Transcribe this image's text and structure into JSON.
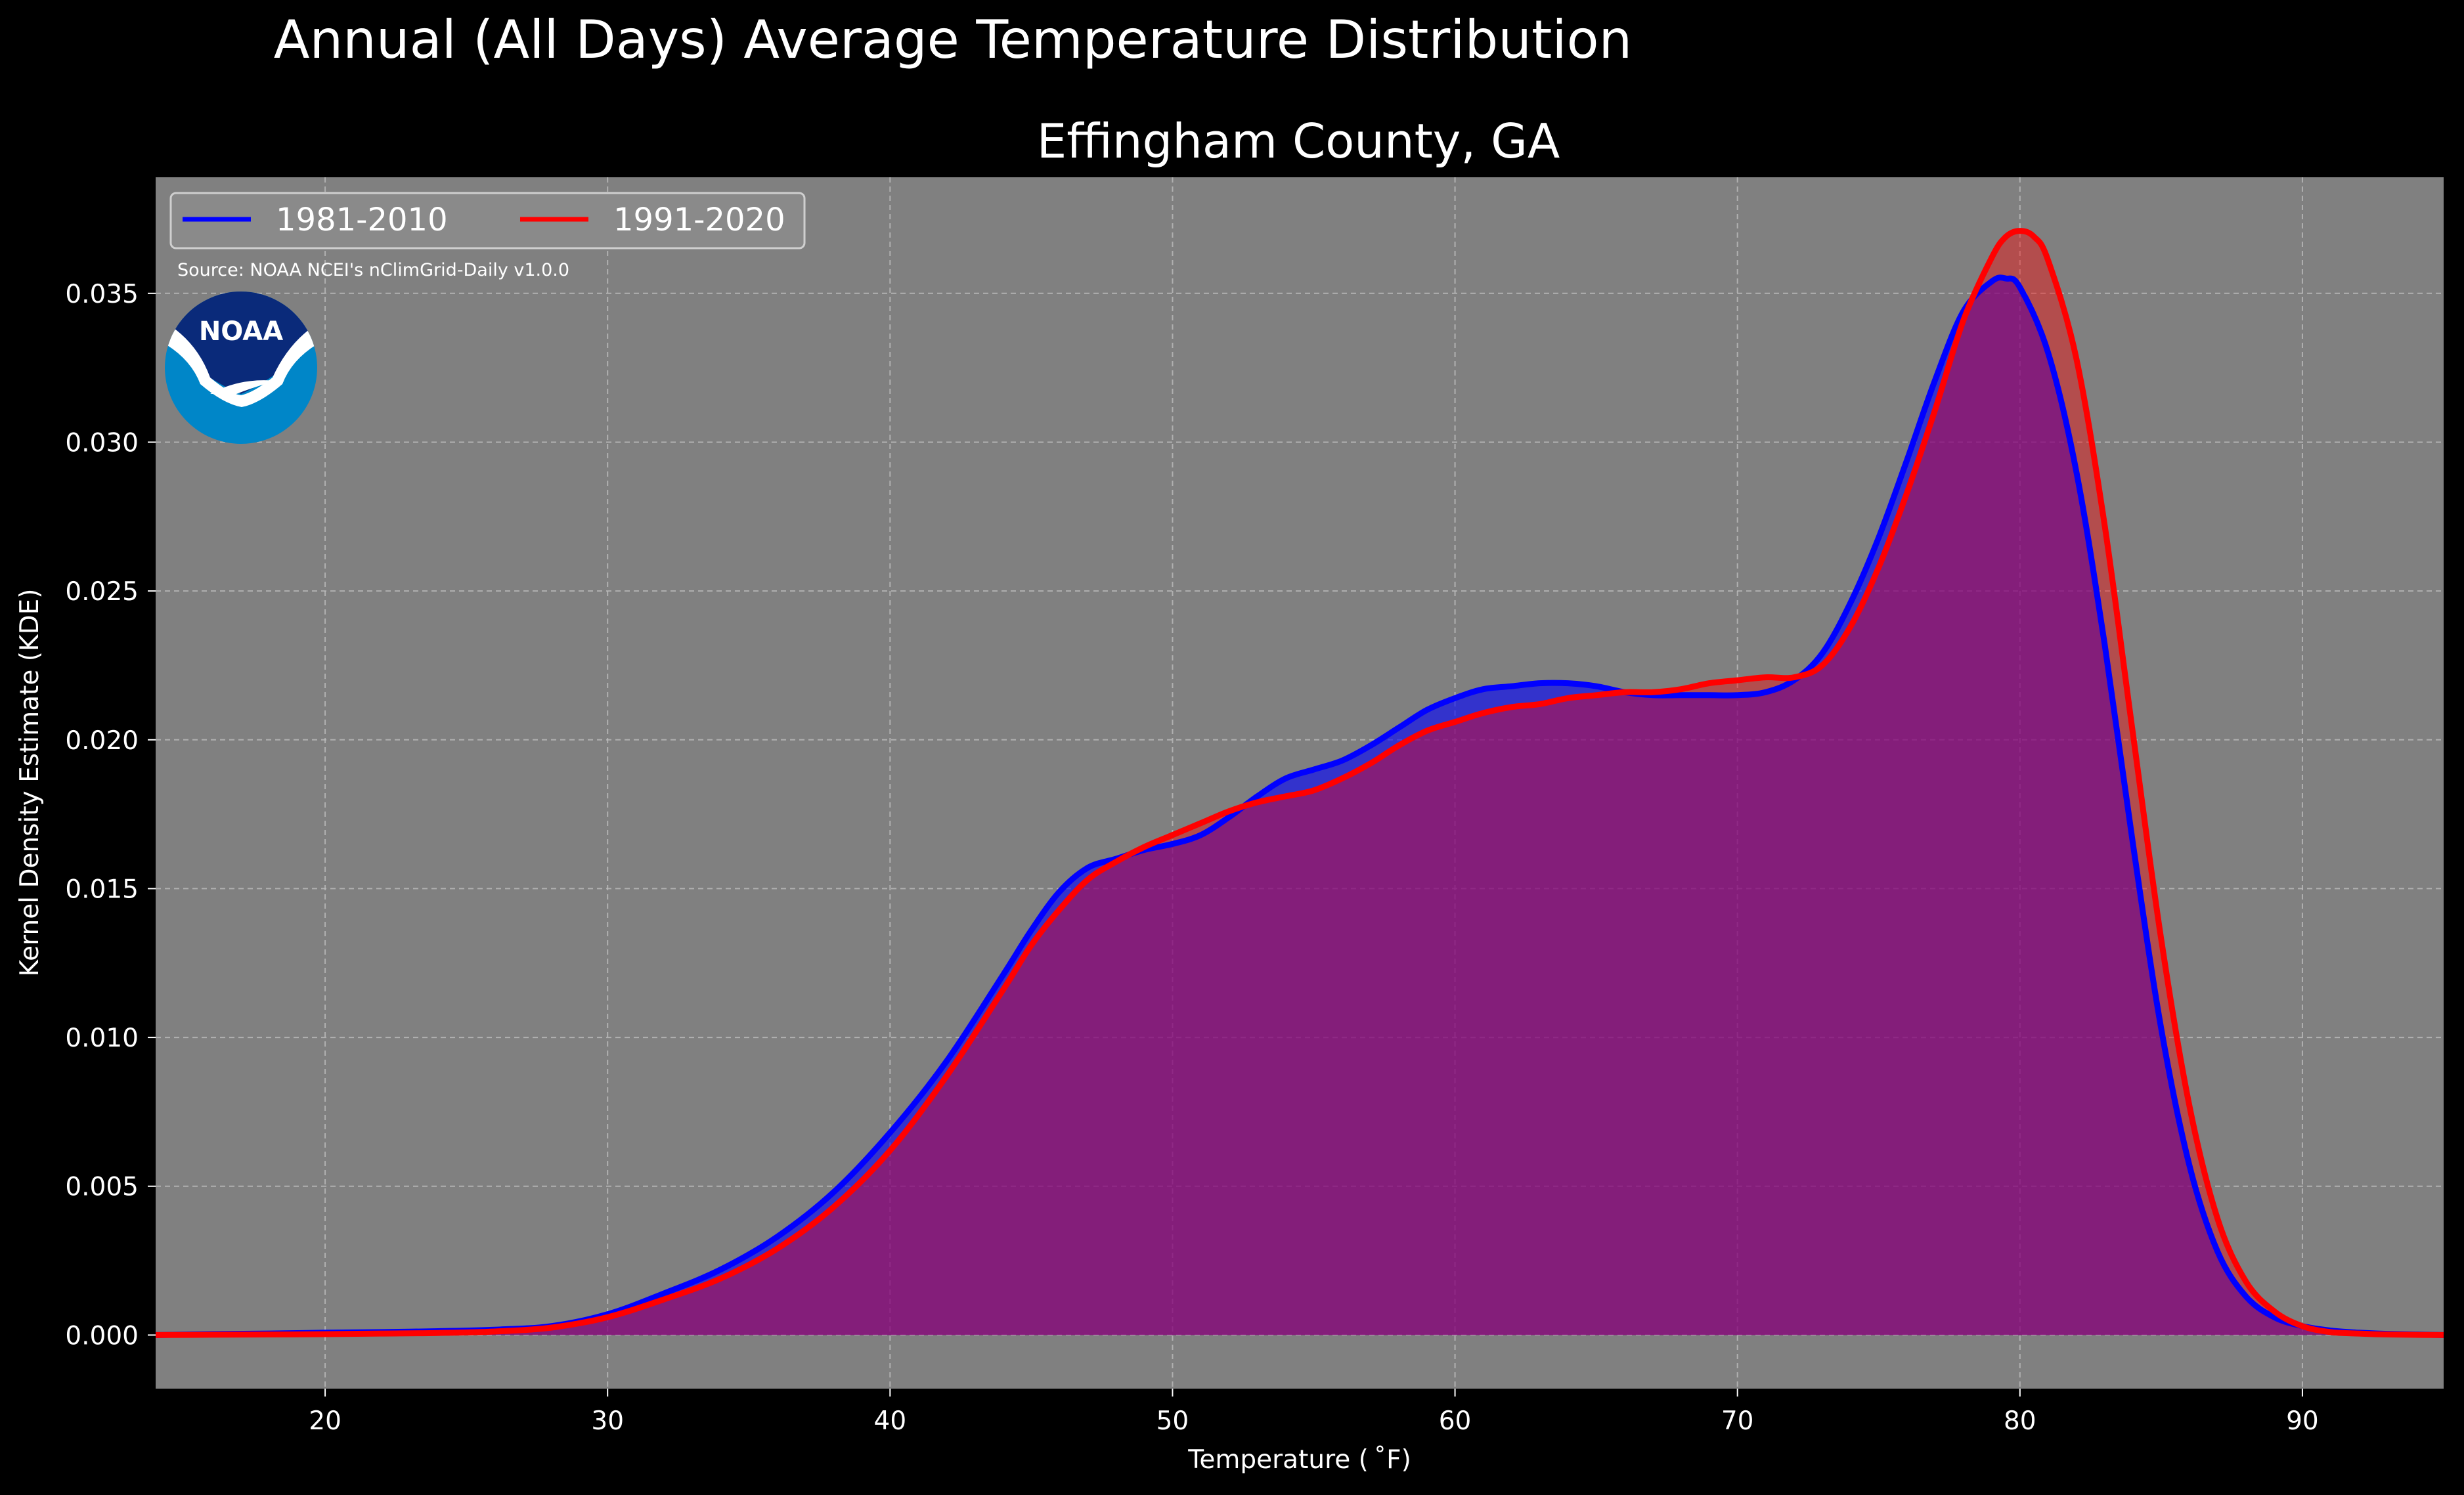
{
  "chart_data": {
    "type": "area",
    "suptitle": "Annual (All Days) Average Temperature Distribution",
    "title": "Effingham County, GA",
    "xlabel": "Temperature ($^\\circ$F)",
    "xlabel_display": "Temperature ( ˚F)",
    "ylabel": "Kernel Density Estimate (KDE)",
    "xlim": [
      14,
      95
    ],
    "ylim": [
      -0.0018,
      0.0389
    ],
    "xticks": [
      20,
      30,
      40,
      50,
      60,
      70,
      80,
      90
    ],
    "xtick_labels": [
      "20",
      "30",
      "40",
      "50",
      "60",
      "70",
      "80",
      "90"
    ],
    "yticks": [
      0.0,
      0.005,
      0.01,
      0.015,
      0.02,
      0.025,
      0.03,
      0.035
    ],
    "ytick_labels": [
      "0.000",
      "0.005",
      "0.010",
      "0.015",
      "0.020",
      "0.025",
      "0.030",
      "0.035"
    ],
    "grid": true,
    "legend_position": "top-left",
    "source_note": "Source: NOAA NCEI's nClimGrid-Daily v1.0.0",
    "logo_text": "NOAA",
    "series": [
      {
        "name": "1981-2010",
        "color": "#0000ff",
        "fill": "rgba(0,0,255,0.6)",
        "x": [
          14,
          16,
          18,
          20,
          22,
          24,
          26,
          28,
          30,
          32,
          34,
          36,
          38,
          40,
          42,
          44,
          45,
          46,
          47,
          48,
          49,
          50,
          51,
          52,
          53,
          54,
          55,
          56,
          57,
          58,
          59,
          60,
          61,
          62,
          63,
          64,
          65,
          66,
          67,
          68,
          69,
          70,
          71,
          72,
          73,
          74,
          75,
          76,
          77,
          78,
          79,
          79.5,
          80,
          81,
          82,
          83,
          84,
          85,
          86,
          87,
          88,
          89,
          90,
          91,
          92,
          93,
          95
        ],
        "y": [
          0.0,
          3e-05,
          5e-05,
          8e-05,
          0.0001,
          0.00013,
          0.00018,
          0.0003,
          0.0007,
          0.0014,
          0.0022,
          0.0033,
          0.0048,
          0.0068,
          0.0092,
          0.0121,
          0.0136,
          0.0149,
          0.0157,
          0.016,
          0.0163,
          0.0165,
          0.0168,
          0.0174,
          0.0181,
          0.0187,
          0.019,
          0.0193,
          0.0198,
          0.0204,
          0.021,
          0.0214,
          0.0217,
          0.0218,
          0.0219,
          0.0219,
          0.0218,
          0.0216,
          0.0215,
          0.0215,
          0.0215,
          0.0215,
          0.0216,
          0.022,
          0.0229,
          0.0246,
          0.0268,
          0.0294,
          0.0321,
          0.0344,
          0.0354,
          0.0355,
          0.0352,
          0.033,
          0.029,
          0.0232,
          0.0165,
          0.0103,
          0.0057,
          0.0028,
          0.0013,
          0.0006,
          0.0003,
          0.00015,
          8e-05,
          4e-05,
          0.0
        ]
      },
      {
        "name": "1991-2020",
        "color": "#ff0000",
        "fill": "rgba(255,0,0,0.4)",
        "x": [
          14,
          16,
          18,
          20,
          22,
          24,
          26,
          28,
          30,
          32,
          34,
          36,
          38,
          40,
          42,
          44,
          45,
          46,
          47,
          48,
          49,
          50,
          51,
          52,
          53,
          54,
          55,
          56,
          57,
          58,
          59,
          60,
          61,
          62,
          63,
          64,
          65,
          66,
          67,
          68,
          69,
          70,
          71,
          72,
          73,
          74,
          75,
          76,
          77,
          78,
          79,
          79.5,
          80,
          80.5,
          81,
          82,
          83,
          84,
          85,
          86,
          87,
          88,
          89,
          90,
          91,
          92,
          93,
          95
        ],
        "y": [
          0.0,
          1e-05,
          2e-05,
          3e-05,
          5e-05,
          7e-05,
          0.00012,
          0.00025,
          0.0006,
          0.0012,
          0.0019,
          0.0029,
          0.0043,
          0.0062,
          0.0087,
          0.0116,
          0.0131,
          0.0143,
          0.0153,
          0.0159,
          0.0164,
          0.0168,
          0.0172,
          0.0176,
          0.0179,
          0.0181,
          0.0183,
          0.0187,
          0.0192,
          0.0198,
          0.0203,
          0.0206,
          0.0209,
          0.0211,
          0.0212,
          0.0214,
          0.0215,
          0.0216,
          0.0216,
          0.0217,
          0.0219,
          0.022,
          0.0221,
          0.0221,
          0.0225,
          0.0238,
          0.0258,
          0.0283,
          0.0311,
          0.0341,
          0.0362,
          0.0369,
          0.0371,
          0.0369,
          0.0361,
          0.0328,
          0.0272,
          0.0202,
          0.0133,
          0.0077,
          0.0039,
          0.0018,
          0.0008,
          0.0003,
          0.0001,
          5e-05,
          2e-05,
          0.0
        ]
      }
    ]
  }
}
